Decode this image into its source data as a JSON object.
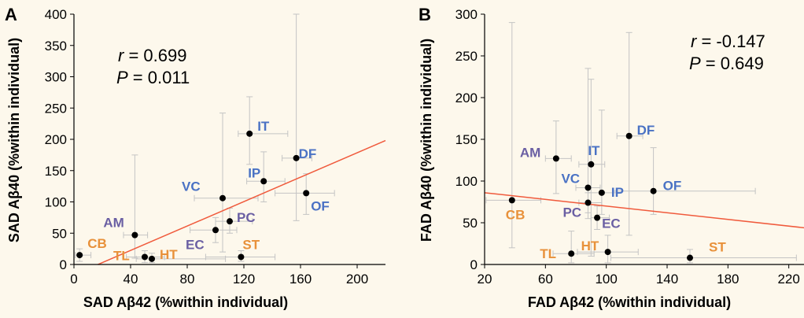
{
  "colors": {
    "background": "#fdf8ec",
    "axis": "#000000",
    "error_bar": "#c4c4c4",
    "point": "#000000",
    "fit_line": "#f05a3c",
    "label_blue": "#4a72c4",
    "label_purple": "#6a5fa3",
    "label_orange": "#e8913a"
  },
  "chart_data": [
    {
      "panel": "A",
      "type": "scatter",
      "xlabel": "SAD Aβ42 (%within individual)",
      "ylabel": "SAD Aβ40 (%within individual)",
      "xlim": [
        0,
        220
      ],
      "ylim": [
        0,
        400
      ],
      "x_ticks": [
        0,
        40,
        80,
        120,
        160,
        200
      ],
      "y_ticks": [
        0,
        50,
        100,
        150,
        200,
        250,
        300,
        350,
        400
      ],
      "stats": {
        "r_symbol": "r",
        "r_value": " = 0.699",
        "p_symbol": "P",
        "p_value": " = 0.011"
      },
      "fit_line": {
        "x": [
          17,
          220
        ],
        "y": [
          0,
          198
        ]
      },
      "points": [
        {
          "label": "IT",
          "x": 124,
          "y": 209,
          "x_err": [
            116,
            151
          ],
          "y_err": [
            160,
            268
          ],
          "label_color": "blue"
        },
        {
          "label": "DF",
          "x": 157,
          "y": 170,
          "x_err": [
            147,
            168
          ],
          "y_err": [
            70,
            400
          ],
          "label_color": "blue"
        },
        {
          "label": "IP",
          "x": 134,
          "y": 133,
          "x_err": [
            122,
            149
          ],
          "y_err": [
            100,
            180
          ],
          "label_color": "blue"
        },
        {
          "label": "OF",
          "x": 164,
          "y": 114,
          "x_err": [
            142,
            184
          ],
          "y_err": [
            80,
            145
          ],
          "label_color": "blue"
        },
        {
          "label": "VC",
          "x": 105,
          "y": 106,
          "x_err": [
            85,
            130
          ],
          "y_err": [
            20,
            242
          ],
          "label_color": "blue"
        },
        {
          "label": "PC",
          "x": 110,
          "y": 69,
          "x_err": [
            100,
            126
          ],
          "y_err": [
            50,
            90
          ],
          "label_color": "purple"
        },
        {
          "label": "EC",
          "x": 100,
          "y": 55,
          "x_err": [
            82,
            115
          ],
          "y_err": [
            35,
            75
          ],
          "label_color": "purple"
        },
        {
          "label": "AM",
          "x": 43,
          "y": 47,
          "x_err": [
            35,
            52
          ],
          "y_err": [
            10,
            175
          ],
          "label_color": "purple"
        },
        {
          "label": "CB",
          "x": 4,
          "y": 15,
          "x_err": [
            1,
            12
          ],
          "y_err": [
            5,
            25
          ],
          "label_color": "orange"
        },
        {
          "label": "TL",
          "x": 50,
          "y": 12,
          "x_err": [
            37,
            64
          ],
          "y_err": [
            3,
            22
          ],
          "label_color": "orange"
        },
        {
          "label": "HT",
          "x": 55,
          "y": 9,
          "x_err": [
            44,
            107
          ],
          "y_err": [
            3,
            18
          ],
          "label_color": "orange"
        },
        {
          "label": "ST",
          "x": 118,
          "y": 12,
          "x_err": [
            93,
            142
          ],
          "y_err": [
            5,
            22
          ],
          "label_color": "orange"
        }
      ]
    },
    {
      "panel": "B",
      "type": "scatter",
      "xlabel": "FAD Aβ42 (%within individual)",
      "ylabel": "FAD Aβ40 (%within individual)",
      "xlim": [
        20,
        230
      ],
      "ylim": [
        0,
        300
      ],
      "x_ticks": [
        20,
        60,
        100,
        140,
        180,
        220
      ],
      "y_ticks": [
        0,
        50,
        100,
        150,
        200,
        250,
        300
      ],
      "stats": {
        "r_symbol": "r",
        "r_value": " = -0.147",
        "p_symbol": "P",
        "p_value": " = 0.649"
      },
      "fit_line": {
        "x": [
          20,
          230
        ],
        "y": [
          86,
          44
        ]
      },
      "points": [
        {
          "label": "DF",
          "x": 115,
          "y": 154,
          "x_err": [
            107,
            124
          ],
          "y_err": [
            35,
            278
          ],
          "label_color": "blue"
        },
        {
          "label": "IT",
          "x": 90,
          "y": 120,
          "x_err": [
            82,
            99
          ],
          "y_err": [
            10,
            222
          ],
          "label_color": "blue"
        },
        {
          "label": "AM",
          "x": 67,
          "y": 127,
          "x_err": [
            60,
            77
          ],
          "y_err": [
            85,
            172
          ],
          "label_color": "purple"
        },
        {
          "label": "OF",
          "x": 131,
          "y": 88,
          "x_err": [
            104,
            198
          ],
          "y_err": [
            60,
            140
          ],
          "label_color": "blue"
        },
        {
          "label": "IP",
          "x": 97,
          "y": 86,
          "x_err": [
            88,
            107
          ],
          "y_err": [
            60,
            185
          ],
          "label_color": "blue"
        },
        {
          "label": "VC",
          "x": 88,
          "y": 92,
          "x_err": [
            80,
            96
          ],
          "y_err": [
            55,
            235
          ],
          "label_color": "blue"
        },
        {
          "label": "PC",
          "x": 88,
          "y": 74,
          "x_err": [
            82,
            97
          ],
          "y_err": [
            62,
            86
          ],
          "label_color": "purple"
        },
        {
          "label": "EC",
          "x": 94,
          "y": 56,
          "x_err": [
            90,
            102
          ],
          "y_err": [
            42,
            70
          ],
          "label_color": "purple"
        },
        {
          "label": "CB",
          "x": 38,
          "y": 77,
          "x_err": [
            21,
            57
          ],
          "y_err": [
            20,
            290
          ],
          "label_color": "orange"
        },
        {
          "label": "TL",
          "x": 77,
          "y": 13,
          "x_err": [
            65,
            92
          ],
          "y_err": [
            2,
            40
          ],
          "label_color": "orange"
        },
        {
          "label": "HT",
          "x": 101,
          "y": 15,
          "x_err": [
            81,
            121
          ],
          "y_err": [
            2,
            35
          ],
          "label_color": "orange"
        },
        {
          "label": "ST",
          "x": 155,
          "y": 8,
          "x_err": [
            103,
            225
          ],
          "y_err": [
            2,
            18
          ],
          "label_color": "orange"
        }
      ]
    }
  ]
}
